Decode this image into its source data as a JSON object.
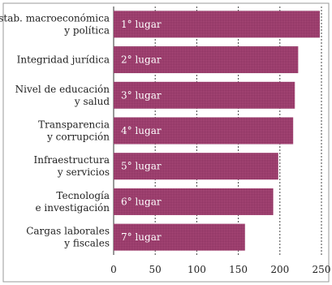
{
  "chart_data": {
    "type": "bar",
    "orientation": "horizontal",
    "categories": [
      [
        "Estab. macroeconómica",
        "y política"
      ],
      [
        "Integridad jurídica"
      ],
      [
        "Nivel de educación",
        "y salud"
      ],
      [
        "Transparencia",
        "y corrupción"
      ],
      [
        "Infraestructura",
        "y servicios"
      ],
      [
        "Tecnología",
        "e investigación"
      ],
      [
        "Cargas laborales",
        "y fiscales"
      ]
    ],
    "values": [
      248,
      222,
      218,
      216,
      198,
      192,
      158
    ],
    "bar_labels": [
      "1° lugar",
      "2° lugar",
      "3° lugar",
      "4° lugar",
      "5° lugar",
      "6° lugar",
      "7° lugar"
    ],
    "x_ticks": [
      "0",
      "50",
      "100",
      "150",
      "200",
      "250"
    ],
    "x_tick_values": [
      0,
      50,
      100,
      150,
      200,
      250
    ],
    "xlim": [
      0,
      250
    ],
    "grid": "vertical dashed",
    "title": "",
    "xlabel": "",
    "ylabel": "",
    "colors": {
      "bar": "#9a3b6c",
      "bar_highlight": "#b2527f",
      "grid": "#444444",
      "frame": "#555555"
    }
  }
}
